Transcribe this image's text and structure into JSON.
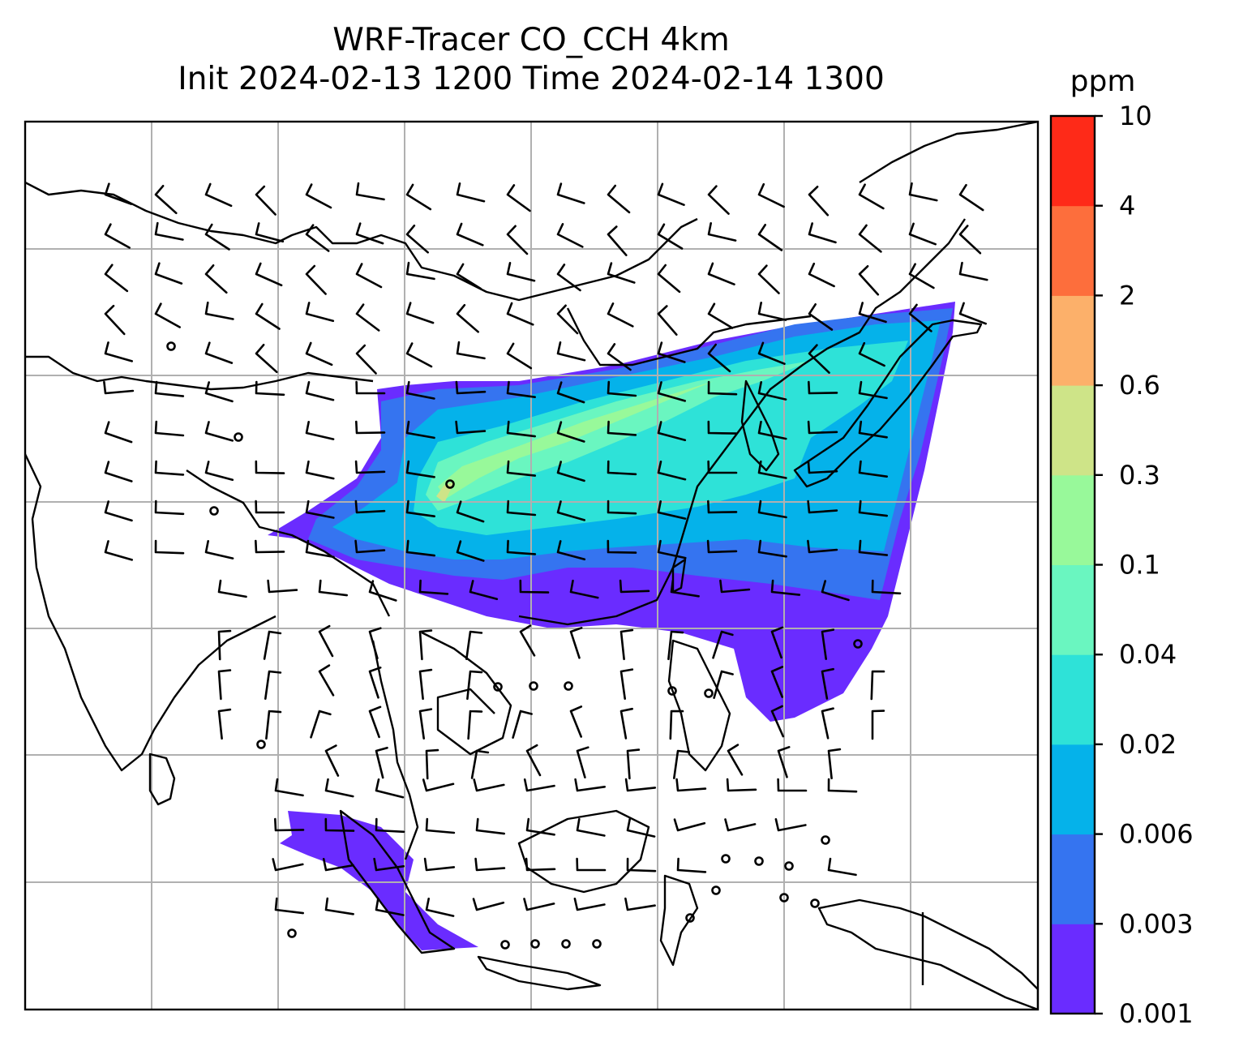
{
  "title": {
    "line1": "WRF-Tracer CO_CCH 4km",
    "line2": "Init 2024-02-13 1200 Time 2024-02-14 1300"
  },
  "colorbar": {
    "unit": "ppm",
    "levels": [
      "0.001",
      "0.003",
      "0.006",
      "0.02",
      "0.04",
      "0.1",
      "0.3",
      "0.6",
      "2",
      "4",
      "10"
    ],
    "colors": [
      "#6a2cff",
      "#3574f0",
      "#05b2ea",
      "#2ee2d8",
      "#6af6c0",
      "#98f99a",
      "#cee488",
      "#fcb06a",
      "#fd6e3c",
      "#fe2a18"
    ]
  },
  "map": {
    "type": "filled-contour map with wind barbs",
    "gridlines": true,
    "coastlines": true,
    "country_borders": true,
    "wind_barbs": true,
    "calm_wind_circles": true
  }
}
